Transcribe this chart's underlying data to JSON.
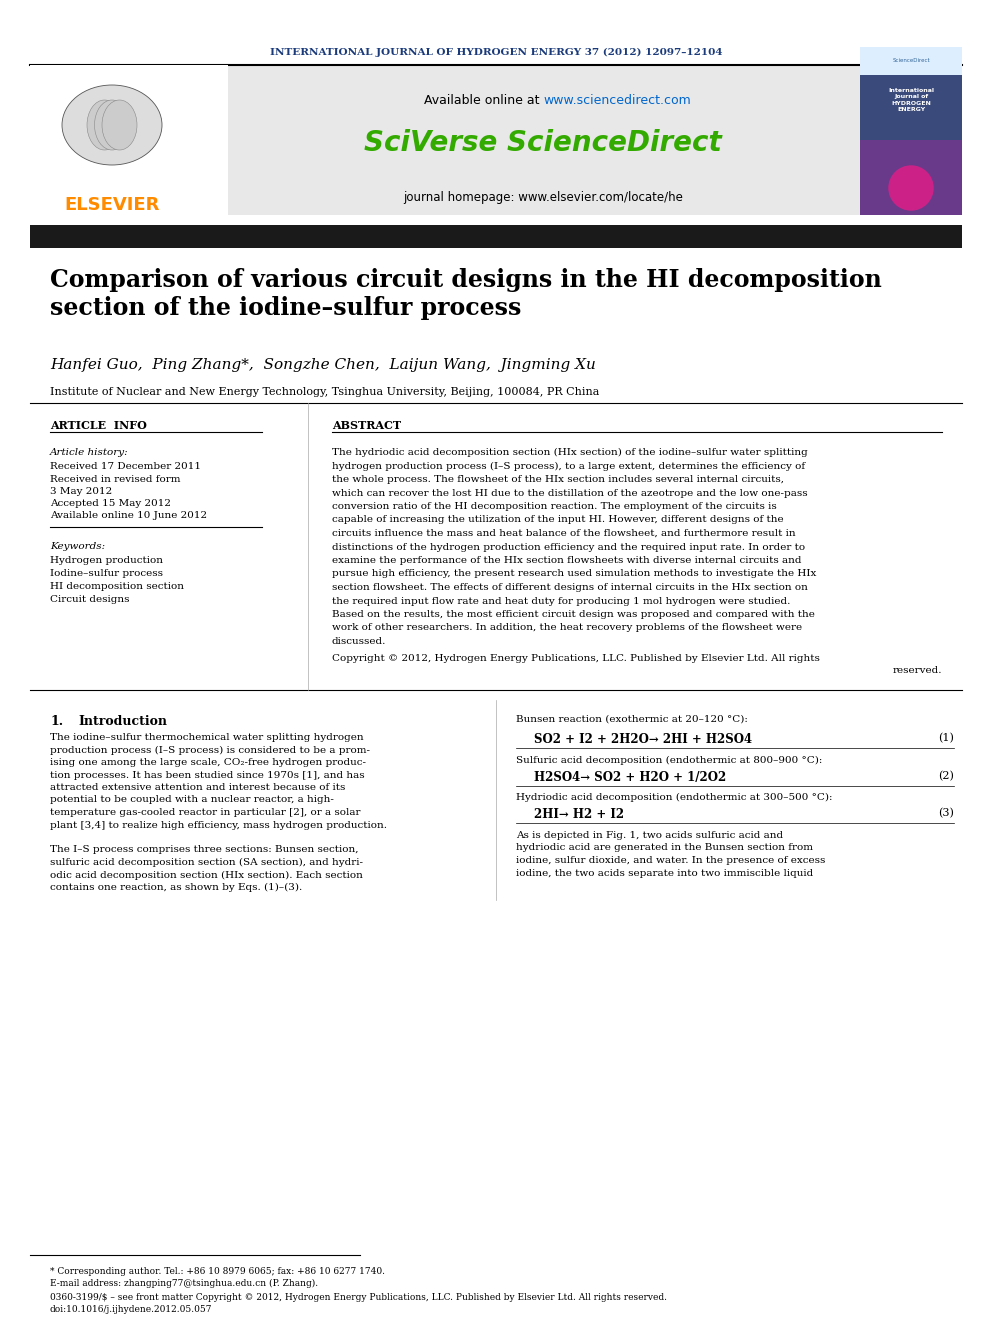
{
  "journal_header": "INTERNATIONAL JOURNAL OF HYDROGEN ENERGY 37 (2012) 12097–12104",
  "journal_header_color": "#1a3a7a",
  "available_online": "Available online at ",
  "website_url": "www.sciencedirect.com",
  "website_color": "#0066cc",
  "sciverse_text": "SciVerse ScienceDirect",
  "sciverse_color": "#33aa00",
  "journal_homepage": "journal homepage: www.elsevier.com/locate/he",
  "elsevier_color": "#ff8c00",
  "header_bar_color": "#1a1a1a",
  "title": "Comparison of various circuit designs in the HI decomposition\nsection of the iodine–sulfur process",
  "authors": "Hanfei Guo,  Ping Zhang*,  Songzhe Chen,  Laijun Wang,  Jingming Xu",
  "affiliation": "Institute of Nuclear and New Energy Technology, Tsinghua University, Beijing, 100084, PR China",
  "article_info_header": "ARTICLE  INFO",
  "abstract_header": "ABSTRACT",
  "article_history_label": "Article history:",
  "received": "Received 17 December 2011",
  "received_revised": "Received in revised form",
  "received_revised2": "3 May 2012",
  "accepted": "Accepted 15 May 2012",
  "available_online2": "Available online 10 June 2012",
  "keywords_label": "Keywords:",
  "keywords": [
    "Hydrogen production",
    "Iodine–sulfur process",
    "HI decomposition section",
    "Circuit designs"
  ],
  "copyright": "Copyright © 2012, Hydrogen Energy Publications, LLC. Published by Elsevier Ltd. All rights",
  "copyright2": "reserved.",
  "bunsen_label": "Bunsen reaction (exothermic at 20–120 °C):",
  "eq1": "SO2 + I2 + 2H2O→ 2HI + H2SO4",
  "eq1_num": "(1)",
  "sa_label": "Sulfuric acid decomposition (endothermic at 800–900 °C):",
  "eq2": "H2SO4→ SO2 + H2O + 1/2O2",
  "eq2_num": "(2)",
  "hi_label": "Hydriodic acid decomposition (endothermic at 300–500 °C):",
  "eq3": "2HI→ H2 + I2",
  "eq3_num": "(3)",
  "footnote1": "* Corresponding author. Tel.: +86 10 8979 6065; fax: +86 10 6277 1740.",
  "footnote2": "E-mail address: zhangping77@tsinghua.edu.cn (P. Zhang).",
  "footnote3": "0360-3199/$ – see front matter Copyright © 2012, Hydrogen Energy Publications, LLC. Published by Elsevier Ltd. All rights reserved.",
  "footnote4": "doi:10.1016/j.ijhydene.2012.05.057",
  "bg_color": "#ffffff",
  "text_color": "#000000",
  "gray_bg": "#e8e8e8",
  "abstract_lines": [
    "The hydriodic acid decomposition section (HIx section) of the iodine–sulfur water splitting",
    "hydrogen production process (I–S process), to a large extent, determines the efficiency of",
    "the whole process. The flowsheet of the HIx section includes several internal circuits,",
    "which can recover the lost HI due to the distillation of the azeotrope and the low one-pass",
    "conversion ratio of the HI decomposition reaction. The employment of the circuits is",
    "capable of increasing the utilization of the input HI. However, different designs of the",
    "circuits influence the mass and heat balance of the flowsheet, and furthermore result in",
    "distinctions of the hydrogen production efficiency and the required input rate. In order to",
    "examine the performance of the HIx section flowsheets with diverse internal circuits and",
    "pursue high efficiency, the present research used simulation methods to investigate the HIx",
    "section flowsheet. The effects of different designs of internal circuits in the HIx section on",
    "the required input flow rate and heat duty for producing 1 mol hydrogen were studied.",
    "Based on the results, the most efficient circuit design was proposed and compared with the",
    "work of other researchers. In addition, the heat recovery problems of the flowsheet were",
    "discussed."
  ],
  "left_body_lines": [
    "The iodine–sulfur thermochemical water splitting hydrogen",
    "production process (I–S process) is considered to be a prom-",
    "ising one among the large scale, CO₂-free hydrogen produc-",
    "tion processes. It has been studied since 1970s [1], and has",
    "attracted extensive attention and interest because of its",
    "potential to be coupled with a nuclear reactor, a high-",
    "temperature gas-cooled reactor in particular [2], or a solar",
    "plant [3,4] to realize high efficiency, mass hydrogen production.",
    "",
    "The I–S process comprises three sections: Bunsen section,",
    "sulfuric acid decomposition section (SA section), and hydri-",
    "odic acid decomposition section (HIx section). Each section",
    "contains one reaction, as shown by Eqs. (1)–(3)."
  ],
  "right_para_lines": [
    "As is depicted in Fig. 1, two acids sulfuric acid and",
    "hydriodic acid are generated in the Bunsen section from",
    "iodine, sulfur dioxide, and water. In the presence of excess",
    "iodine, the two acids separate into two immiscible liquid"
  ]
}
